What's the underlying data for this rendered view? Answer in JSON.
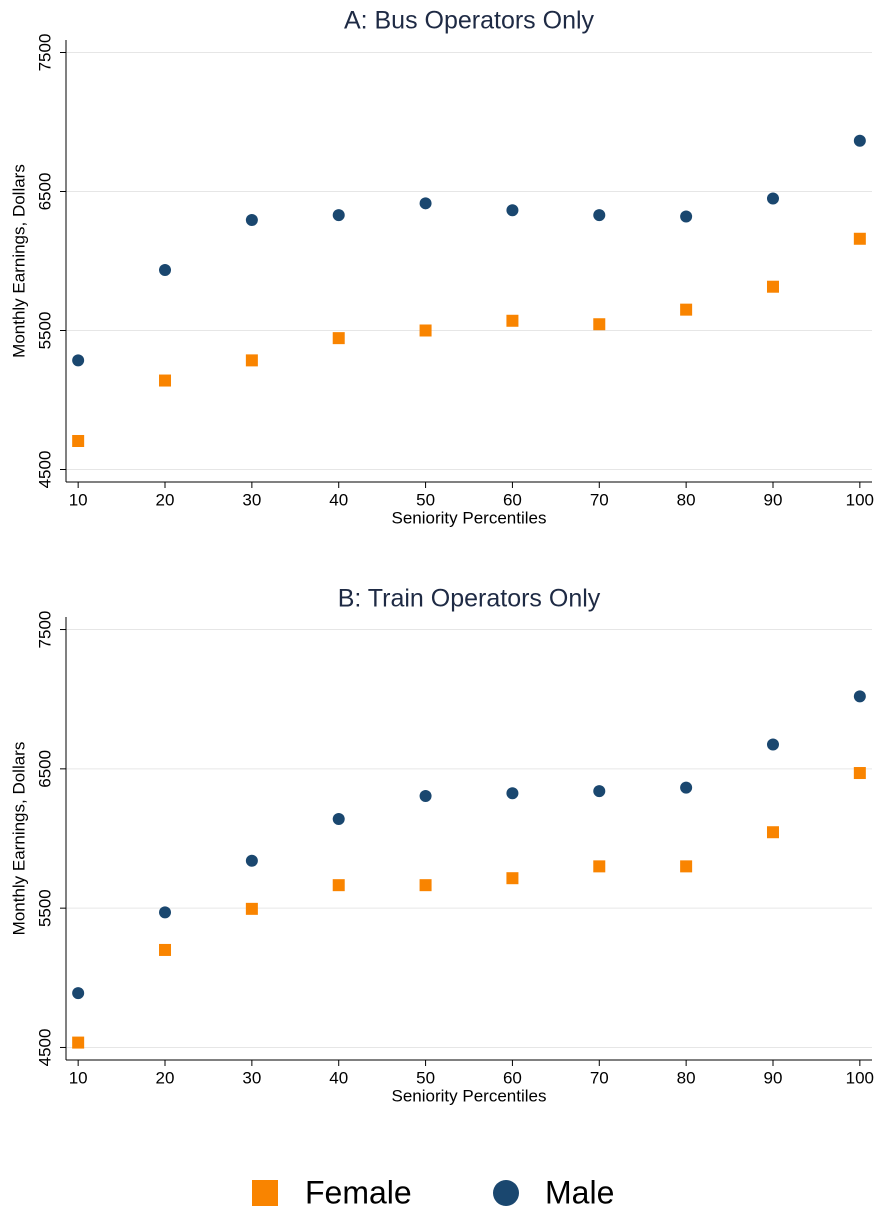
{
  "chart_data": [
    {
      "type": "scatter",
      "title": "A: Bus Operators Only",
      "x_label": "Seniority Percentiles",
      "y_label": "Monthly Earnings, Dollars",
      "x": [
        10,
        20,
        30,
        40,
        50,
        60,
        70,
        80,
        90,
        100
      ],
      "series": [
        {
          "name": "Female",
          "color": "#f98400",
          "marker": "square",
          "values": [
            4705,
            5140,
            5285,
            5445,
            5500,
            5570,
            5545,
            5650,
            5815,
            6160
          ]
        },
        {
          "name": "Male",
          "color": "#1a476f",
          "marker": "circle",
          "values": [
            5285,
            5935,
            6295,
            6330,
            6415,
            6365,
            6330,
            6320,
            6450,
            6865
          ]
        }
      ],
      "xlim": [
        8.6,
        101.4
      ],
      "ylim": [
        4410,
        7590
      ],
      "xticks": [
        10,
        20,
        30,
        40,
        50,
        60,
        70,
        80,
        90,
        100
      ],
      "yticks": [
        4500,
        5500,
        6500,
        7500
      ],
      "grid": true,
      "legend": "bottom"
    },
    {
      "type": "scatter",
      "title": "B: Train Operators Only",
      "x_label": "Seniority Percentiles",
      "y_label": "Monthly Earnings, Dollars",
      "x": [
        10,
        20,
        30,
        40,
        50,
        60,
        70,
        80,
        90,
        100
      ],
      "series": [
        {
          "color": "#f98400",
          "marker": "square",
          "values": [
            4535,
            5200,
            5495,
            5665,
            5665,
            5715,
            5800,
            5800,
            6045,
            6470
          ]
        },
        {
          "color": "#1a476f",
          "marker": "circle",
          "values": [
            4890,
            5470,
            5840,
            6140,
            6305,
            6325,
            6340,
            6365,
            6675,
            7020
          ]
        }
      ],
      "xlim": [
        8.6,
        101.4
      ],
      "ylim": [
        4410,
        7590
      ],
      "xticks": [
        10,
        20,
        30,
        40,
        50,
        60,
        70,
        80,
        90,
        100
      ],
      "yticks": [
        4500,
        5500,
        6500,
        7500
      ],
      "grid": true
    }
  ]
}
